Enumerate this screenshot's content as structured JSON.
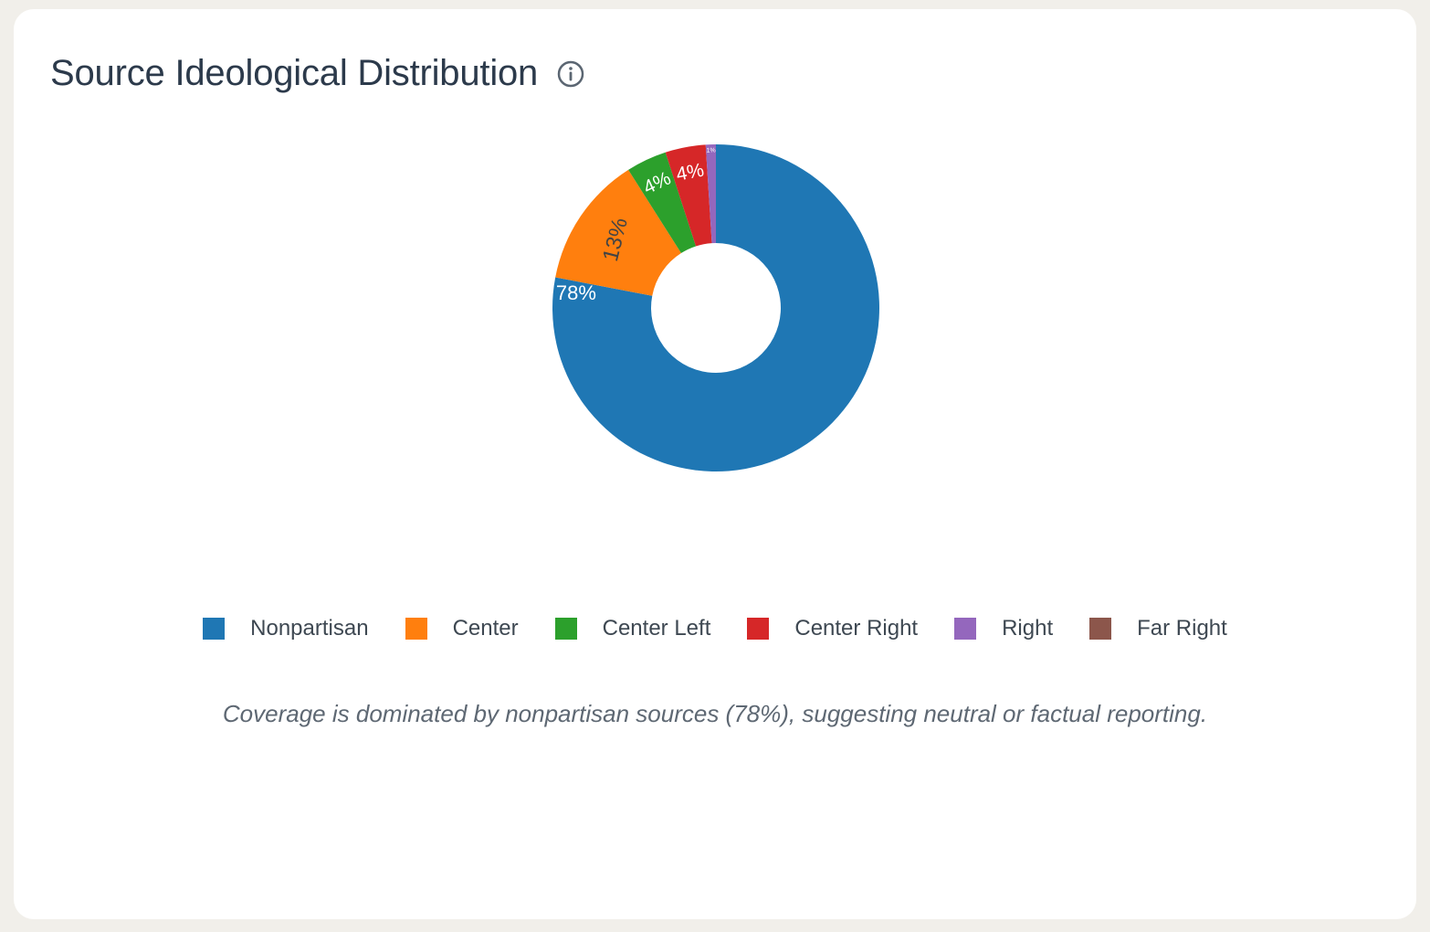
{
  "header": {
    "title": "Source Ideological Distribution",
    "info_icon": "info-circle-icon"
  },
  "chart_data": {
    "type": "pie",
    "hole": true,
    "labels": [
      "Nonpartisan",
      "Center",
      "Center Left",
      "Center Right",
      "Right",
      "Far Right"
    ],
    "values": [
      78,
      13,
      4,
      4,
      1,
      0
    ],
    "slice_labels": [
      "78%",
      "13%",
      "4%",
      "4%",
      "1%",
      ""
    ],
    "colors": [
      "#1f77b4",
      "#ff7f0e",
      "#2ca02c",
      "#d62728",
      "#9467bd",
      "#8c564b"
    ],
    "direction": "clockwise",
    "start": "top",
    "legend_position": "bottom"
  },
  "caption": "Coverage is dominated by nonpartisan sources (78%), suggesting neutral or factual reporting."
}
